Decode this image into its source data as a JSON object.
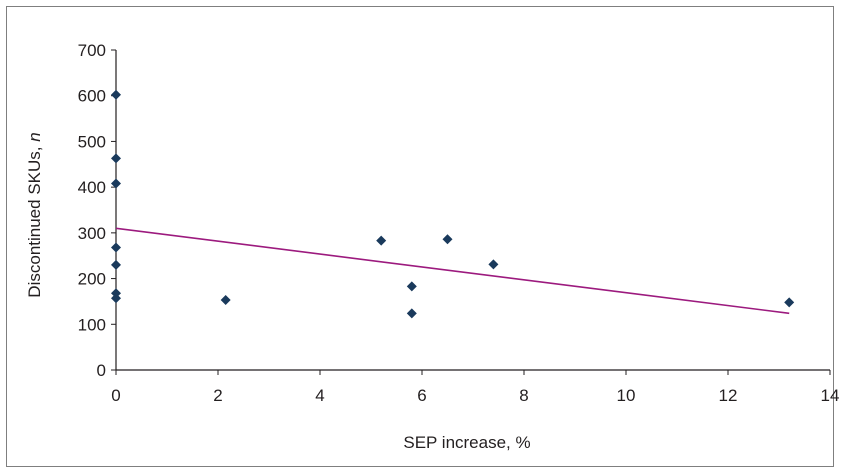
{
  "chart_data": {
    "type": "scatter",
    "xlabel": "SEP increase, %",
    "ylabel_main": "Discontinued SKUs, ",
    "ylabel_italic": "n",
    "xlim": [
      0,
      14
    ],
    "ylim": [
      0,
      700
    ],
    "x_ticks": [
      0,
      2,
      4,
      6,
      8,
      10,
      12,
      14
    ],
    "y_ticks": [
      0,
      100,
      200,
      300,
      400,
      500,
      600,
      700
    ],
    "grid": false,
    "legend": "none",
    "series": [
      {
        "marker": "diamond",
        "color": "#1a3a5c",
        "points": [
          {
            "x": 0,
            "y": 602
          },
          {
            "x": 0,
            "y": 463
          },
          {
            "x": 0,
            "y": 408
          },
          {
            "x": 0,
            "y": 268
          },
          {
            "x": 0,
            "y": 230
          },
          {
            "x": 0,
            "y": 168
          },
          {
            "x": 0,
            "y": 157
          },
          {
            "x": 2.15,
            "y": 153
          },
          {
            "x": 5.2,
            "y": 283
          },
          {
            "x": 5.8,
            "y": 183
          },
          {
            "x": 5.8,
            "y": 124
          },
          {
            "x": 6.5,
            "y": 286
          },
          {
            "x": 7.4,
            "y": 231
          },
          {
            "x": 13.2,
            "y": 148
          }
        ]
      }
    ],
    "trendline": {
      "type": "linear",
      "color": "#9c1a7e",
      "from": {
        "x": 0,
        "y": 310
      },
      "to": {
        "x": 13.2,
        "y": 124
      }
    }
  }
}
